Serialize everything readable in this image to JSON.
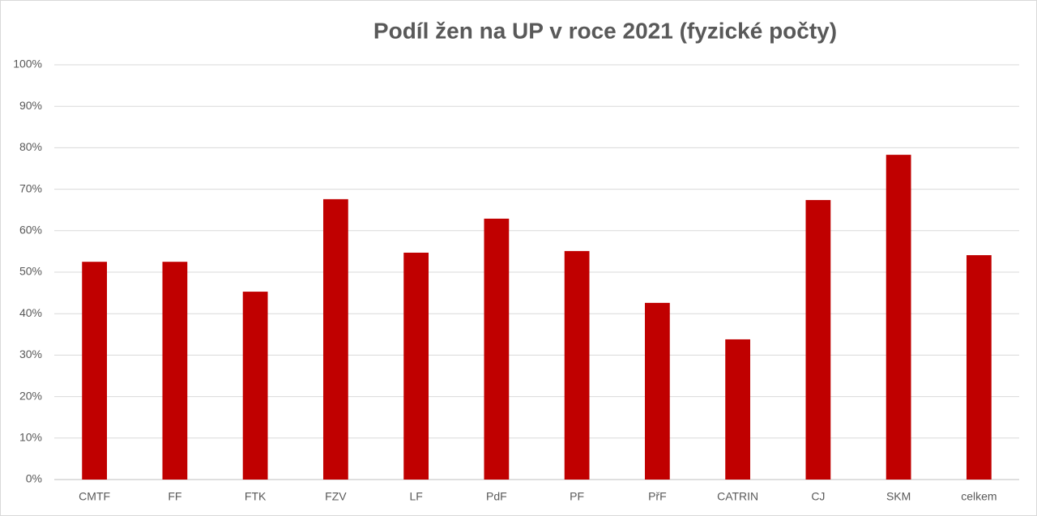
{
  "chart_data": {
    "type": "bar",
    "title": "Podíl žen na UP v roce 2021 (fyzické počty)",
    "categories": [
      "CMTF",
      "FF",
      "FTK",
      "FZV",
      "LF",
      "PdF",
      "PF",
      "PřF",
      "CATRIN",
      "CJ",
      "SKM",
      "celkem"
    ],
    "values": [
      52.5,
      52.5,
      45.3,
      67.6,
      54.7,
      62.9,
      55.1,
      42.6,
      33.8,
      67.4,
      78.3,
      54.1
    ],
    "color": "#c00000",
    "ylim": [
      0,
      100
    ],
    "yticks": [
      {
        "value": 0,
        "label": "0%"
      },
      {
        "value": 10,
        "label": "10%"
      },
      {
        "value": 20,
        "label": "20%"
      },
      {
        "value": 30,
        "label": "30%"
      },
      {
        "value": 40,
        "label": "40%"
      },
      {
        "value": 50,
        "label": "50%"
      },
      {
        "value": 60,
        "label": "60%"
      },
      {
        "value": 70,
        "label": "70%"
      },
      {
        "value": 80,
        "label": "80%"
      },
      {
        "value": 90,
        "label": "90%"
      },
      {
        "value": 100,
        "label": "100%"
      }
    ],
    "grid": true
  }
}
